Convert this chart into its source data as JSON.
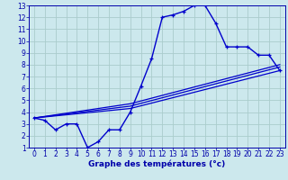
{
  "xlabel": "Graphe des températures (°c)",
  "background_color": "#cce8ed",
  "grid_color": "#aacccc",
  "line_color": "#0000cc",
  "spine_color": "#0000aa",
  "xlim": [
    -0.5,
    23.5
  ],
  "ylim": [
    1,
    13
  ],
  "xticks": [
    0,
    1,
    2,
    3,
    4,
    5,
    6,
    7,
    8,
    9,
    10,
    11,
    12,
    13,
    14,
    15,
    16,
    17,
    18,
    19,
    20,
    21,
    22,
    23
  ],
  "yticks": [
    1,
    2,
    3,
    4,
    5,
    6,
    7,
    8,
    9,
    10,
    11,
    12,
    13
  ],
  "curve1_x": [
    0,
    1,
    2,
    3,
    4,
    5,
    6,
    7,
    8,
    9,
    10,
    11,
    12,
    13,
    14,
    15,
    16,
    17,
    18,
    19,
    20,
    21,
    22,
    23
  ],
  "curve1_y": [
    3.5,
    3.3,
    2.5,
    3.0,
    3.0,
    1.0,
    1.5,
    2.5,
    2.5,
    4.0,
    6.2,
    8.5,
    12.0,
    12.2,
    12.5,
    13.0,
    13.0,
    11.5,
    9.5,
    9.5,
    9.5,
    8.8,
    8.8,
    7.5
  ],
  "line2_x": [
    0,
    9,
    23
  ],
  "line2_y": [
    3.5,
    4.3,
    7.5
  ],
  "line3_x": [
    0,
    9,
    23
  ],
  "line3_y": [
    3.5,
    4.5,
    7.8
  ],
  "line4_x": [
    0,
    9,
    23
  ],
  "line4_y": [
    3.5,
    4.7,
    8.0
  ],
  "tick_fontsize": 5.5,
  "xlabel_fontsize": 6.5
}
